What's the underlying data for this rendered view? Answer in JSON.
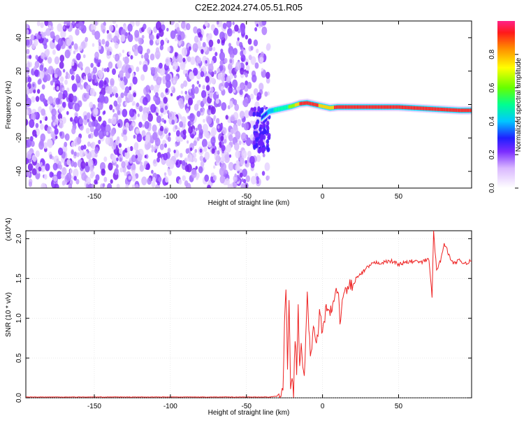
{
  "title": "C2E2.2024.274.05.51.R05",
  "chart_data": [
    {
      "type": "heatmap",
      "xlabel": "Height of straight line (km)",
      "ylabel": "Frequency (Hz)",
      "xlim": [
        -195,
        98
      ],
      "ylim": [
        -50,
        50
      ],
      "xticks": [
        -150,
        -100,
        -50,
        0,
        50
      ],
      "yticks": [
        -40,
        -20,
        0,
        20,
        40
      ],
      "colorbar": {
        "label": "Normalized spectral amplitude",
        "ticks": [
          "0.0",
          "0.2",
          "0.4",
          "0.6",
          "0.8"
        ],
        "range": [
          0,
          1
        ]
      },
      "noise_region": {
        "x_from": -195,
        "x_to": -40,
        "amplitude": "0.0-0.2"
      },
      "signal_ridge": {
        "x": [
          -40,
          -35,
          -30,
          -25,
          -20,
          -15,
          -10,
          -5,
          0,
          5,
          10,
          20,
          30,
          40,
          50,
          60,
          70,
          80,
          90,
          98
        ],
        "frequency": [
          -8,
          -4,
          -3,
          -2,
          -1,
          0.5,
          1,
          0,
          -1,
          -2,
          -1.5,
          -1.5,
          -1.5,
          -1.5,
          -1.5,
          -2,
          -2.5,
          -3,
          -3.5,
          -3.5
        ],
        "amplitude": [
          0.2,
          0.3,
          0.45,
          0.5,
          0.6,
          0.85,
          0.95,
          0.9,
          0.8,
          0.75,
          0.95,
          0.95,
          0.95,
          0.95,
          0.9,
          0.85,
          0.9,
          0.95,
          0.9,
          0.9
        ]
      }
    },
    {
      "type": "line",
      "xlabel": "Height of straight line (km)",
      "ylabel": "SNR (10 * v/v)",
      "yscale_label": "(x10^4)",
      "xlim": [
        -195,
        98
      ],
      "ylim": [
        0,
        2.1
      ],
      "xticks": [
        -150,
        -100,
        -50,
        0,
        50
      ],
      "yticks": [
        0.0,
        0.5,
        1.0,
        1.5,
        2.0
      ],
      "ytick_labels": [
        "0.0",
        "0.5",
        "1.0",
        "1.5",
        "2.0"
      ],
      "series": [
        {
          "color": "#ee2222",
          "x": [
            -195,
            -150,
            -100,
            -50,
            -35,
            -30,
            -26,
            -25,
            -24,
            -23,
            -22,
            -21,
            -20,
            -19,
            -18,
            -17,
            -16,
            -15,
            -14,
            -12,
            -10,
            -8,
            -6,
            -4,
            -2,
            0,
            2,
            5,
            8,
            10,
            12,
            14,
            16,
            18,
            20,
            22,
            25,
            28,
            30,
            35,
            40,
            45,
            50,
            55,
            60,
            65,
            70,
            72,
            73,
            75,
            78,
            80,
            85,
            90,
            92,
            95,
            98
          ],
          "y": [
            0.01,
            0.01,
            0.01,
            0.01,
            0.01,
            0.02,
            0.1,
            0.9,
            1.35,
            0.4,
            1.3,
            0.15,
            0.25,
            0.05,
            0.8,
            0.3,
            1.1,
            0.4,
            0.6,
            0.3,
            1.25,
            0.5,
            0.9,
            0.6,
            1.1,
            0.8,
            1.1,
            1.05,
            1.25,
            1.35,
            0.9,
            1.4,
            1.3,
            1.45,
            1.4,
            1.5,
            1.55,
            1.6,
            1.65,
            1.7,
            1.7,
            1.72,
            1.68,
            1.7,
            1.72,
            1.7,
            1.75,
            1.25,
            2.1,
            1.6,
            1.75,
            1.95,
            1.7,
            1.72,
            1.7,
            1.7,
            1.72
          ]
        }
      ]
    }
  ]
}
